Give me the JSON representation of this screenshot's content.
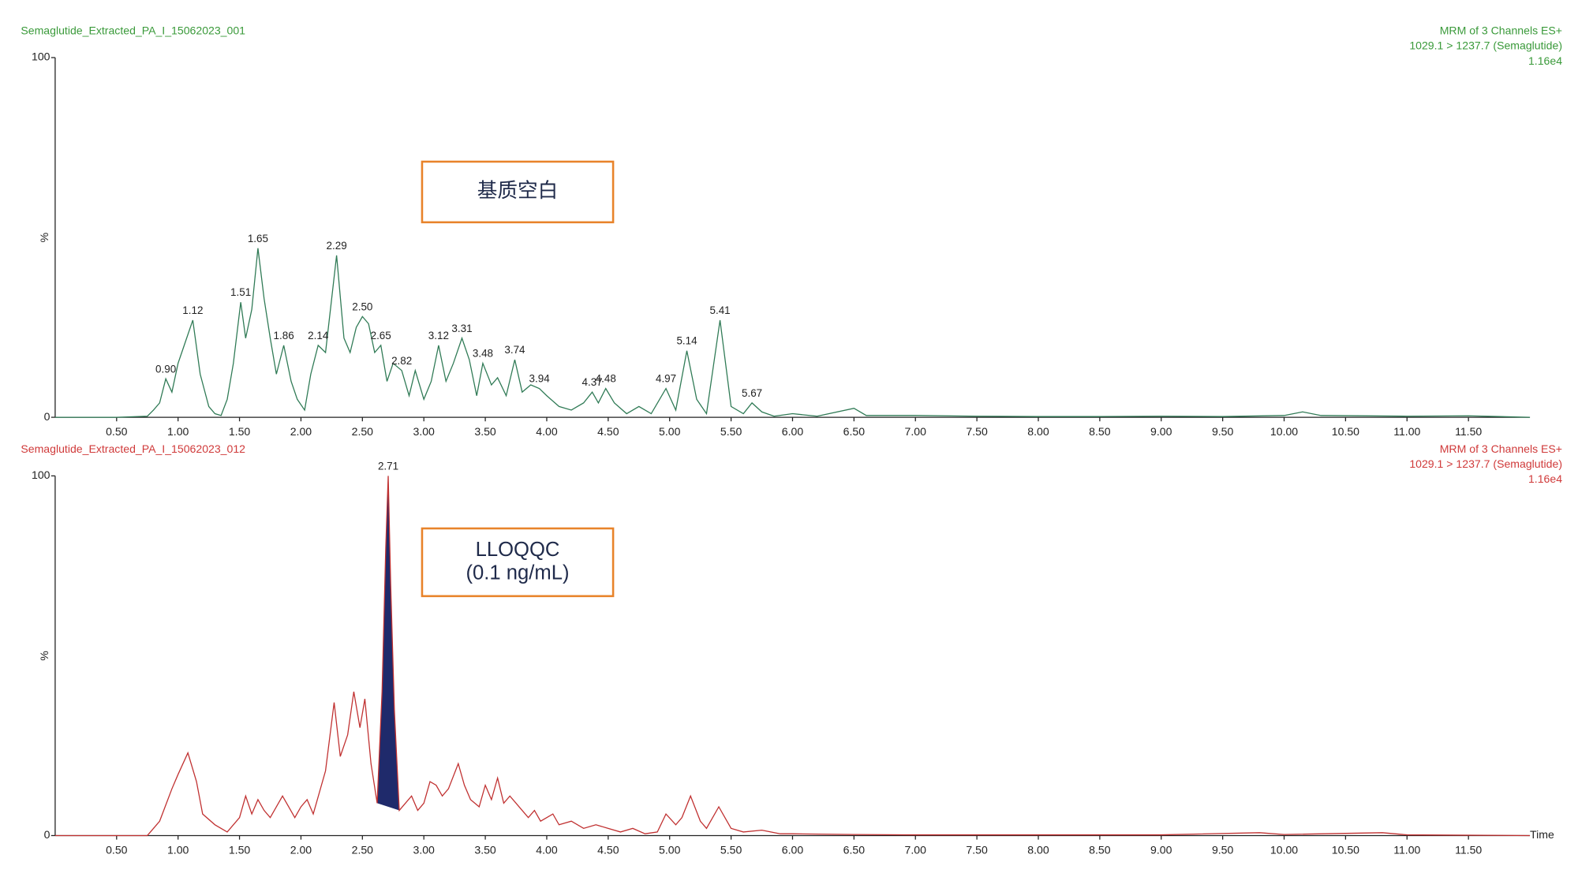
{
  "chart_data": [
    {
      "type": "line",
      "title": "Semaglutide_Extracted_PA_I_15062023_001",
      "header": [
        "MRM of 3 Channels ES+",
        "1029.1 > 1237.7 (Semaglutide)",
        "1.16e4"
      ],
      "text_color": "#3a9a3a",
      "box_text": [
        "基质空白"
      ],
      "box_color": "#e8832a",
      "y_label": "%",
      "color": "#2f7a55",
      "xlim": [
        0,
        12
      ],
      "ylim": [
        0,
        100
      ],
      "yticks": [
        0,
        100
      ],
      "xticks": [
        {
          "value": 0.5,
          "label": "0.50"
        },
        {
          "value": 1,
          "label": "1.00"
        },
        {
          "value": 1.5,
          "label": "1.50"
        },
        {
          "value": 2,
          "label": "2.00"
        },
        {
          "value": 2.5,
          "label": "2.50"
        },
        {
          "value": 3,
          "label": "3.00"
        },
        {
          "value": 3.5,
          "label": "3.50"
        },
        {
          "value": 4,
          "label": "4.00"
        },
        {
          "value": 4.5,
          "label": "4.50"
        },
        {
          "value": 5,
          "label": "5.00"
        },
        {
          "value": 5.5,
          "label": "5.50"
        },
        {
          "value": 6,
          "label": "6.00"
        },
        {
          "value": 6.5,
          "label": "6.50"
        },
        {
          "value": 7,
          "label": "7.00"
        },
        {
          "value": 7.5,
          "label": "7.50"
        },
        {
          "value": 8,
          "label": "8.00"
        },
        {
          "value": 8.5,
          "label": "8.50"
        },
        {
          "value": 9,
          "label": "9.00"
        },
        {
          "value": 9.5,
          "label": "9.50"
        },
        {
          "value": 10,
          "label": "10.00"
        },
        {
          "value": 10.5,
          "label": "10.50"
        },
        {
          "value": 11,
          "label": "11.00"
        },
        {
          "value": 11.5,
          "label": "11.50"
        }
      ],
      "x": [
        0,
        0.5,
        0.75,
        0.8,
        0.85,
        0.9,
        0.95,
        1.0,
        1.05,
        1.12,
        1.18,
        1.25,
        1.3,
        1.35,
        1.4,
        1.45,
        1.51,
        1.55,
        1.6,
        1.65,
        1.7,
        1.75,
        1.8,
        1.86,
        1.92,
        1.97,
        2.03,
        2.08,
        2.14,
        2.2,
        2.29,
        2.35,
        2.4,
        2.45,
        2.5,
        2.55,
        2.6,
        2.65,
        2.7,
        2.75,
        2.82,
        2.88,
        2.93,
        3.0,
        3.06,
        3.12,
        3.18,
        3.24,
        3.31,
        3.37,
        3.43,
        3.48,
        3.55,
        3.6,
        3.67,
        3.74,
        3.8,
        3.87,
        3.94,
        4.0,
        4.1,
        4.2,
        4.3,
        4.37,
        4.42,
        4.48,
        4.55,
        4.65,
        4.75,
        4.85,
        4.97,
        5.05,
        5.14,
        5.22,
        5.3,
        5.41,
        5.5,
        5.6,
        5.67,
        5.75,
        5.85,
        6.0,
        6.2,
        6.5,
        6.6,
        7.0,
        7.5,
        8.0,
        8.5,
        9.0,
        9.5,
        10.0,
        10.15,
        10.3,
        11.0,
        11.5,
        12.0
      ],
      "values": [
        0,
        0,
        0.3,
        2,
        4,
        10.7,
        7,
        15,
        20,
        27,
        12,
        3,
        1,
        0.5,
        5,
        15,
        32,
        22,
        30,
        47,
        33,
        22,
        12,
        20,
        10,
        5,
        2,
        12,
        20,
        18,
        45,
        22,
        18,
        25,
        28,
        26,
        18,
        20,
        10,
        15,
        13,
        6,
        13,
        5,
        10,
        20,
        10,
        15,
        22,
        16,
        6,
        15,
        9,
        11,
        6,
        16,
        7,
        9,
        8,
        6,
        3,
        2,
        4,
        7,
        4,
        8,
        4,
        1,
        3,
        1,
        8,
        2,
        18.5,
        5,
        1,
        27,
        3,
        1,
        4,
        1.5,
        0.3,
        1,
        0.3,
        2.5,
        0.5,
        0.5,
        0.3,
        0.2,
        0.2,
        0.3,
        0.2,
        0.5,
        1.5,
        0.5,
        0.3,
        0.4,
        0
      ],
      "annotations": [
        {
          "value": 0.9,
          "label": "0.90"
        },
        {
          "value": 1.12,
          "label": "1.12"
        },
        {
          "value": 1.51,
          "label": "1.51"
        },
        {
          "value": 1.65,
          "label": "1.65"
        },
        {
          "value": 1.86,
          "label": "1.86"
        },
        {
          "value": 2.14,
          "label": "2.14"
        },
        {
          "value": 2.29,
          "label": "2.29"
        },
        {
          "value": 2.5,
          "label": "2.50"
        },
        {
          "value": 2.65,
          "label": "2.65"
        },
        {
          "value": 2.82,
          "label": "2.82"
        },
        {
          "value": 3.12,
          "label": "3.12"
        },
        {
          "value": 3.31,
          "label": "3.31"
        },
        {
          "value": 3.48,
          "label": "3.48"
        },
        {
          "value": 3.74,
          "label": "3.74"
        },
        {
          "value": 3.94,
          "label": "3.94"
        },
        {
          "value": 4.37,
          "label": "4.37"
        },
        {
          "value": 4.48,
          "label": "4.48"
        },
        {
          "value": 4.97,
          "label": "4.97"
        },
        {
          "value": 5.14,
          "label": "5.14"
        },
        {
          "value": 5.41,
          "label": "5.41"
        },
        {
          "value": 5.67,
          "label": "5.67"
        }
      ]
    },
    {
      "type": "line",
      "title": "Semaglutide_Extracted_PA_I_15062023_012",
      "header": [
        "MRM of 3 Channels ES+",
        "1029.1 > 1237.7 (Semaglutide)",
        "1.16e4"
      ],
      "text_color": "#d03a3a",
      "box_text": [
        "LLOQQC",
        "(0.1 ng/mL)"
      ],
      "box_color": "#e8832a",
      "y_label": "%",
      "x_label": "Time",
      "color": "#c03030",
      "peak_fill_color": "#1f2a6b",
      "xlim": [
        0,
        12
      ],
      "ylim": [
        0,
        100
      ],
      "yticks": [
        0,
        100
      ],
      "xticks": [
        {
          "value": 0.5,
          "label": "0.50"
        },
        {
          "value": 1,
          "label": "1.00"
        },
        {
          "value": 1.5,
          "label": "1.50"
        },
        {
          "value": 2,
          "label": "2.00"
        },
        {
          "value": 2.5,
          "label": "2.50"
        },
        {
          "value": 3,
          "label": "3.00"
        },
        {
          "value": 3.5,
          "label": "3.50"
        },
        {
          "value": 4,
          "label": "4.00"
        },
        {
          "value": 4.5,
          "label": "4.50"
        },
        {
          "value": 5,
          "label": "5.00"
        },
        {
          "value": 5.5,
          "label": "5.50"
        },
        {
          "value": 6,
          "label": "6.00"
        },
        {
          "value": 6.5,
          "label": "6.50"
        },
        {
          "value": 7,
          "label": "7.00"
        },
        {
          "value": 7.5,
          "label": "7.50"
        },
        {
          "value": 8,
          "label": "8.00"
        },
        {
          "value": 8.5,
          "label": "8.50"
        },
        {
          "value": 9,
          "label": "9.00"
        },
        {
          "value": 9.5,
          "label": "9.50"
        },
        {
          "value": 10,
          "label": "10.00"
        },
        {
          "value": 10.5,
          "label": "10.50"
        },
        {
          "value": 11,
          "label": "11.00"
        },
        {
          "value": 11.5,
          "label": "11.50"
        }
      ],
      "x": [
        0,
        0.5,
        0.75,
        0.85,
        0.95,
        1.0,
        1.08,
        1.15,
        1.2,
        1.3,
        1.4,
        1.5,
        1.55,
        1.6,
        1.65,
        1.7,
        1.75,
        1.85,
        1.9,
        1.95,
        2.0,
        2.05,
        2.1,
        2.2,
        2.27,
        2.32,
        2.38,
        2.43,
        2.48,
        2.52,
        2.57,
        2.62,
        2.66,
        2.69,
        2.71,
        2.73,
        2.76,
        2.8,
        2.85,
        2.9,
        2.95,
        3.0,
        3.05,
        3.1,
        3.15,
        3.2,
        3.28,
        3.33,
        3.38,
        3.45,
        3.5,
        3.55,
        3.6,
        3.65,
        3.7,
        3.8,
        3.85,
        3.9,
        3.95,
        4.0,
        4.05,
        4.1,
        4.2,
        4.3,
        4.4,
        4.5,
        4.6,
        4.7,
        4.8,
        4.9,
        4.97,
        5.05,
        5.1,
        5.17,
        5.25,
        5.3,
        5.4,
        5.45,
        5.5,
        5.6,
        5.75,
        5.9,
        6.0,
        6.5,
        7.0,
        8.0,
        9.0,
        9.8,
        10.0,
        10.8,
        11.0,
        12.0
      ],
      "values": [
        0,
        0,
        0,
        4,
        13,
        17,
        23,
        15,
        6,
        3,
        1,
        5,
        11,
        6,
        10,
        7,
        5,
        11,
        8,
        5,
        8,
        10,
        6,
        18,
        37,
        22,
        28,
        40,
        30,
        38,
        20,
        9,
        40,
        80,
        100,
        70,
        35,
        7,
        9,
        11,
        7,
        9,
        15,
        14,
        11,
        13,
        20,
        14,
        10,
        8,
        14,
        10,
        16,
        9,
        11,
        7,
        5,
        7,
        4,
        5,
        6,
        3,
        4,
        2,
        3,
        2,
        1,
        2,
        0.5,
        1,
        6,
        3,
        5,
        11,
        4,
        2,
        8,
        5,
        2,
        1,
        1.5,
        0.5,
        0.5,
        0.3,
        0.2,
        0.2,
        0.2,
        0.8,
        0.3,
        0.8,
        0.2,
        0
      ],
      "annotations": [
        {
          "value": 2.71,
          "label": "2.71"
        }
      ]
    }
  ]
}
